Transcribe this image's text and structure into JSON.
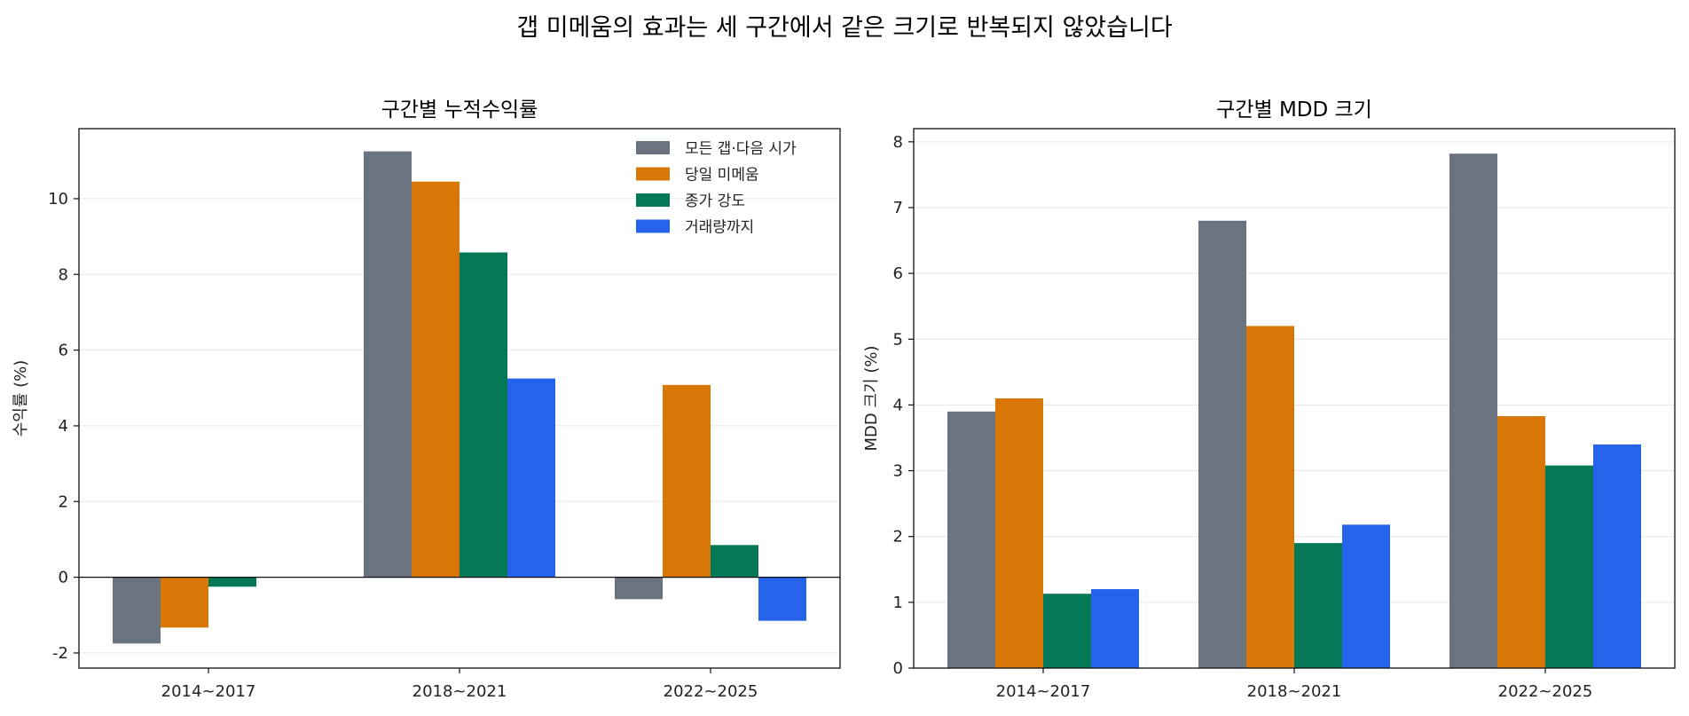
{
  "title": "갭 미메움의 효과는 세 구간에서 같은 크기로 반복되지 않았습니다",
  "colors": {
    "모든 갭·다음 시가": "#6b7280",
    "당일 미메움": "#d97706",
    "종가 강도": "#047857",
    "거래량까지": "#2563eb"
  },
  "chart_data": [
    {
      "type": "bar",
      "title": "구간별 누적수익률",
      "xlabel": "",
      "ylabel": "수익률 (%)",
      "categories": [
        "2014~2017",
        "2018~2021",
        "2022~2025"
      ],
      "ylim": [
        -2.4,
        11.85
      ],
      "yticks": [
        -2,
        0,
        2,
        4,
        6,
        8,
        10
      ],
      "grid": "y",
      "legend": "top-right",
      "series": [
        {
          "name": "모든 갭·다음 시가",
          "values": [
            -1.75,
            11.25,
            -0.58
          ]
        },
        {
          "name": "당일 미메움",
          "values": [
            -1.33,
            10.45,
            5.08
          ]
        },
        {
          "name": "종가 강도",
          "values": [
            -0.25,
            8.58,
            0.85
          ]
        },
        {
          "name": "거래량까지",
          "values": [
            0.0,
            5.25,
            -1.15
          ]
        }
      ]
    },
    {
      "type": "bar",
      "title": "구간별 MDD 크기",
      "xlabel": "",
      "ylabel": "MDD 크기 (%)",
      "categories": [
        "2014~2017",
        "2018~2021",
        "2022~2025"
      ],
      "ylim": [
        0,
        8.2
      ],
      "yticks": [
        0,
        1,
        2,
        3,
        4,
        5,
        6,
        7,
        8
      ],
      "grid": "y",
      "series": [
        {
          "name": "모든 갭·다음 시가",
          "values": [
            3.9,
            6.8,
            7.82
          ]
        },
        {
          "name": "당일 미메움",
          "values": [
            4.1,
            5.2,
            3.83
          ]
        },
        {
          "name": "종가 강도",
          "values": [
            1.13,
            1.9,
            3.08
          ]
        },
        {
          "name": "거래량까지",
          "values": [
            1.2,
            2.18,
            3.4
          ]
        }
      ]
    }
  ]
}
